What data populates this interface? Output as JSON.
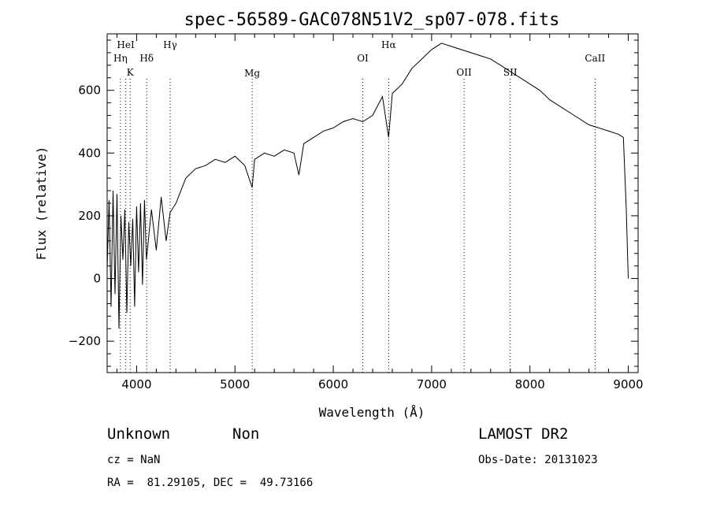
{
  "chart_data": {
    "type": "line",
    "title": "spec-56589-GAC078N51V2_sp07-078.fits",
    "xlabel": "Wavelength (Å)",
    "ylabel": "Flux (relative)",
    "xlim": [
      3700,
      9100
    ],
    "ylim": [
      -300,
      780
    ],
    "xticks": [
      4000,
      5000,
      6000,
      7000,
      8000,
      9000
    ],
    "yticks": [
      -200,
      0,
      200,
      400,
      600
    ],
    "grid": false,
    "legend": "none",
    "series": [
      {
        "x": [
          3700,
          3720,
          3740,
          3760,
          3780,
          3800,
          3820,
          3840,
          3860,
          3880,
          3900,
          3920,
          3940,
          3960,
          3980,
          4000,
          4020,
          4040,
          4060,
          4080,
          4100,
          4150,
          4200,
          4250,
          4300,
          4340,
          4400,
          4450,
          4500,
          4600,
          4700,
          4800,
          4900,
          5000,
          5100,
          5175,
          5200,
          5300,
          5400,
          5500,
          5600,
          5650,
          5700,
          5800,
          5900,
          6000,
          6100,
          6200,
          6300,
          6400,
          6500,
          6563,
          6600,
          6700,
          6800,
          6900,
          7000,
          7100,
          7200,
          7300,
          7400,
          7500,
          7600,
          7700,
          7800,
          7900,
          8000,
          8100,
          8200,
          8300,
          8400,
          8500,
          8600,
          8700,
          8800,
          8900,
          8950,
          8980,
          9000
        ],
        "y": [
          30,
          250,
          -90,
          280,
          -50,
          270,
          -160,
          200,
          60,
          220,
          -110,
          180,
          40,
          190,
          -90,
          230,
          20,
          240,
          -20,
          250,
          60,
          220,
          90,
          260,
          120,
          210,
          240,
          280,
          320,
          350,
          360,
          380,
          370,
          390,
          360,
          290,
          380,
          400,
          390,
          410,
          400,
          330,
          430,
          450,
          470,
          480,
          500,
          510,
          500,
          520,
          580,
          450,
          590,
          620,
          670,
          700,
          730,
          750,
          740,
          730,
          720,
          710,
          700,
          680,
          660,
          640,
          620,
          600,
          570,
          550,
          530,
          510,
          490,
          480,
          470,
          460,
          450,
          220,
          0
        ],
        "values_approx": true
      }
    ],
    "line_markers": [
      {
        "name": "HeI",
        "wavelength": 3889
      },
      {
        "name": "Hη",
        "wavelength": 3835
      },
      {
        "name": "K",
        "wavelength": 3934
      },
      {
        "name": "Hδ",
        "wavelength": 4102
      },
      {
        "name": "Hγ",
        "wavelength": 4341
      },
      {
        "name": "Mg",
        "wavelength": 5175
      },
      {
        "name": "OI",
        "wavelength": 6300
      },
      {
        "name": "Hα",
        "wavelength": 6563
      },
      {
        "name": "OII",
        "wavelength": 7330
      },
      {
        "name": "SII",
        "wavelength": 7800
      },
      {
        "name": "CaII",
        "wavelength": 8662
      }
    ]
  },
  "footer": {
    "class_label": "Unknown",
    "subclass_label": "Non",
    "cz": "cz = NaN",
    "coords": "RA =  81.29105, DEC =  49.73166",
    "survey": "LAMOST DR2",
    "obs_date": "Obs-Date: 20131023"
  }
}
